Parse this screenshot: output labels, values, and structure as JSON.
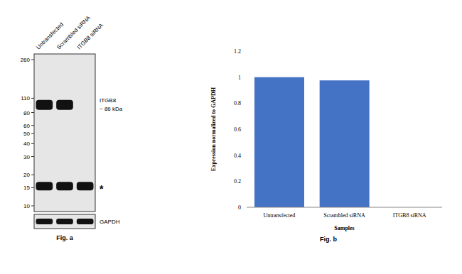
{
  "figure_a": {
    "caption": "Fig. a",
    "lanes": [
      "Untransfected",
      "Scrambled siRNA",
      "ITGB8 siRNA"
    ],
    "ladder_kda": [
      260,
      110,
      80,
      60,
      50,
      40,
      30,
      20,
      15,
      10
    ],
    "target": {
      "label": "ITGB8",
      "size_label": "~ 86 kDa",
      "kda": 95,
      "present": [
        true,
        true,
        false
      ]
    },
    "nonspecific": {
      "label": "*",
      "kda": 15.5,
      "present": [
        true,
        true,
        true
      ]
    },
    "loading_control": {
      "label": "GAPDH",
      "present": [
        true,
        true,
        true
      ]
    }
  },
  "chart_data": {
    "type": "bar",
    "caption": "Fig. b",
    "categories": [
      "Untransfected",
      "Scrambled siRNA",
      "ITGB8 siRNA"
    ],
    "values": [
      1,
      0.975,
      0
    ],
    "color": "#4472c4",
    "xlabel": "Samples",
    "ylabel": "Expression normalized to GAPDH",
    "ylim": [
      0,
      1.2
    ],
    "yticks": [
      0,
      0.2,
      0.4,
      0.6,
      0.8,
      1,
      1.2
    ],
    "grid": false
  }
}
